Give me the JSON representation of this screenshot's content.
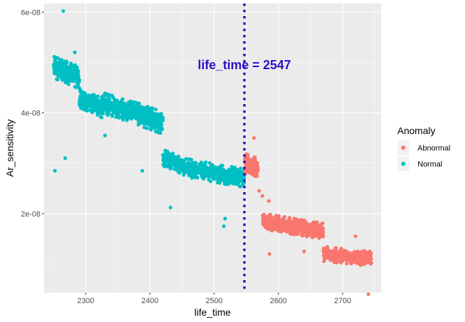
{
  "chart_data": {
    "type": "scatter",
    "title": "",
    "xlabel": "life_time",
    "ylabel": "Ar_sensitivity",
    "xlim": [
      2235,
      2760
    ],
    "ylim": [
      4.3e-09,
      6.17e-08
    ],
    "x_ticks": [
      2300,
      2400,
      2500,
      2600,
      2700
    ],
    "x_tick_labels": [
      "2300",
      "2400",
      "2500",
      "2600",
      "2700"
    ],
    "y_ticks": [
      2e-08,
      4e-08,
      6e-08
    ],
    "y_tick_labels": [
      "2e-08",
      "4e-08",
      "6e-08"
    ],
    "grid": true,
    "legend": {
      "title": "Anomaly",
      "placement": "right",
      "entries": [
        {
          "label": "Abnormal",
          "color": "#F8766D"
        },
        {
          "label": "Normal",
          "color": "#00BFC4"
        }
      ]
    },
    "vline": {
      "x": 2547,
      "color": "#2E10C8",
      "style": "dotted"
    },
    "annotation": {
      "text": "life_time = 2547",
      "x": 2547,
      "y": 4.95e-08,
      "color": "#2E10C8"
    },
    "series": [
      {
        "name": "Normal",
        "color": "#00BFC4",
        "clusters": [
          {
            "x0": 2250,
            "x1": 2290,
            "y_start": 4.9e-08,
            "y_end": 4.7e-08,
            "spread": 1.8e-09,
            "n": 340
          },
          {
            "x0": 2290,
            "x1": 2325,
            "y_start": 4.3e-08,
            "y_end": 4.1e-08,
            "spread": 1.6e-09,
            "n": 220
          },
          {
            "x0": 2325,
            "x1": 2375,
            "y_start": 4.2e-08,
            "y_end": 4e-08,
            "spread": 1.7e-09,
            "n": 320
          },
          {
            "x0": 2375,
            "x1": 2420,
            "y_start": 4e-08,
            "y_end": 3.8e-08,
            "spread": 1.8e-09,
            "n": 280
          },
          {
            "x0": 2420,
            "x1": 2460,
            "y_start": 3.1e-08,
            "y_end": 2.9e-08,
            "spread": 1.4e-09,
            "n": 200
          },
          {
            "x0": 2460,
            "x1": 2547,
            "y_start": 2.9e-08,
            "y_end": 2.7e-08,
            "spread": 1.5e-09,
            "n": 480
          }
        ],
        "points": [
          {
            "x": 2265,
            "y": 6.02e-08
          },
          {
            "x": 2268,
            "y": 3.1e-08
          },
          {
            "x": 2252,
            "y": 2.85e-08
          },
          {
            "x": 2283,
            "y": 5.2e-08
          },
          {
            "x": 2330,
            "y": 3.55e-08
          },
          {
            "x": 2388,
            "y": 2.85e-08
          },
          {
            "x": 2432,
            "y": 2.12e-08
          },
          {
            "x": 2517,
            "y": 1.9e-08
          },
          {
            "x": 2515,
            "y": 1.75e-08
          }
        ]
      },
      {
        "name": "Abnormal",
        "color": "#F8766D",
        "clusters": [
          {
            "x0": 2547,
            "x1": 2568,
            "y_start": 3e-08,
            "y_end": 2.9e-08,
            "spread": 1.6e-09,
            "n": 150
          },
          {
            "x0": 2575,
            "x1": 2670,
            "y_start": 1.85e-08,
            "y_end": 1.65e-08,
            "spread": 1.3e-09,
            "n": 650
          },
          {
            "x0": 2670,
            "x1": 2745,
            "y_start": 1.2e-08,
            "y_end": 1.1e-08,
            "spread": 1.2e-09,
            "n": 420
          }
        ],
        "points": [
          {
            "x": 2562,
            "y": 3.5e-08
          },
          {
            "x": 2570,
            "y": 2.45e-08
          },
          {
            "x": 2575,
            "y": 2.35e-08
          },
          {
            "x": 2585,
            "y": 2.25e-08
          },
          {
            "x": 2586,
            "y": 1.2e-08
          },
          {
            "x": 2640,
            "y": 1.25e-08
          },
          {
            "x": 2720,
            "y": 1.55e-08
          },
          {
            "x": 2740,
            "y": 4e-09
          }
        ]
      }
    ]
  }
}
